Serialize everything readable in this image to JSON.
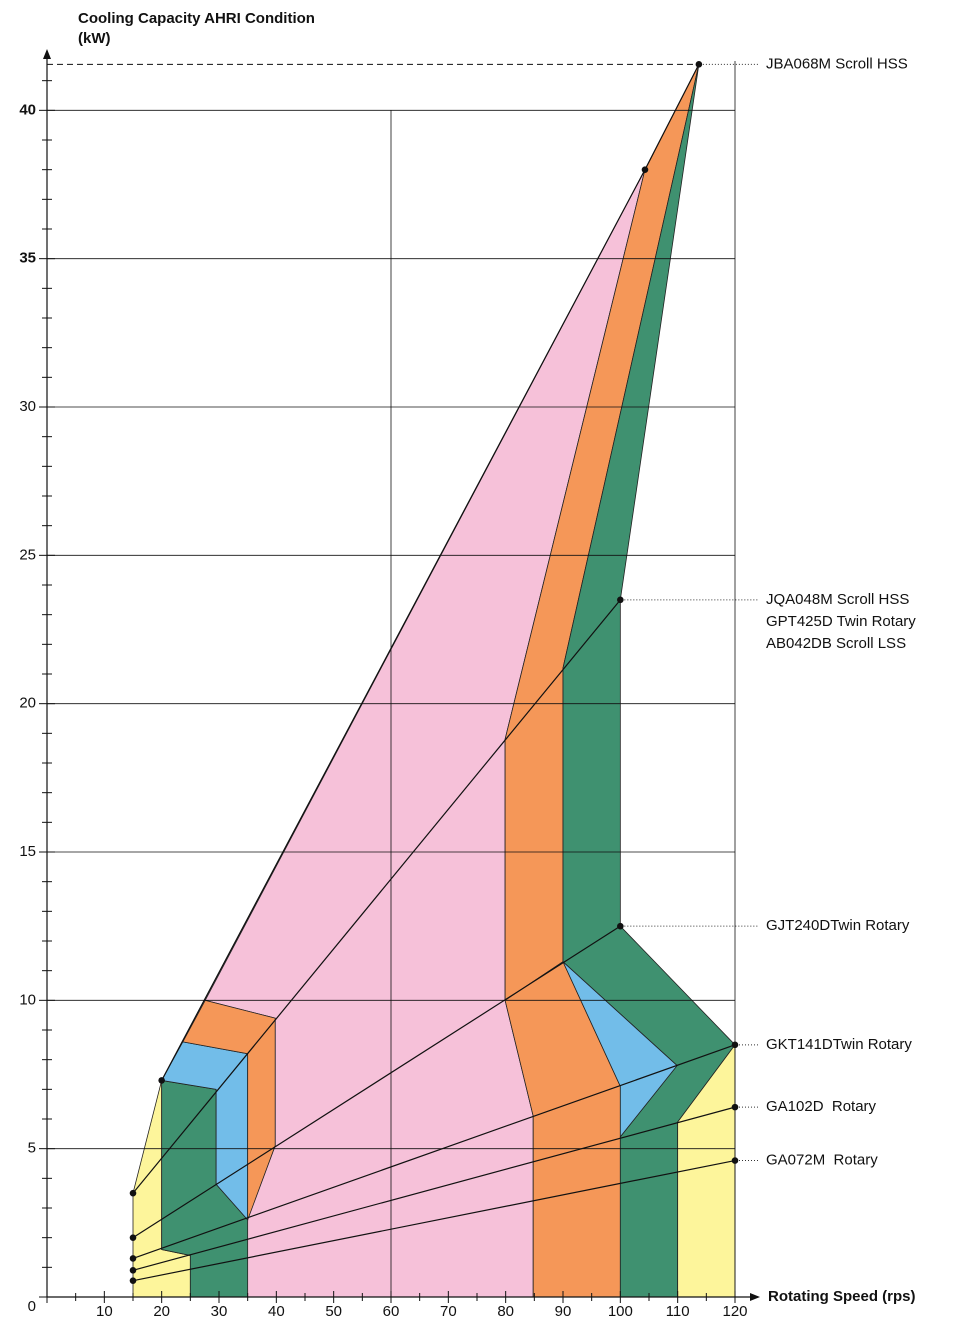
{
  "chart_data": {
    "type": "line",
    "title": "Cooling Capacity AHRI Condition",
    "title_unit": "(kW)",
    "x_label": "Rotating Speed (rps)",
    "xlim": [
      0,
      120
    ],
    "ylim": [
      0,
      42
    ],
    "xticks": [
      0,
      10,
      20,
      30,
      40,
      50,
      60,
      70,
      80,
      90,
      100,
      110,
      120
    ],
    "xminorticks": [
      5,
      15,
      25,
      35,
      45,
      55,
      65,
      75,
      85,
      95,
      105,
      115
    ],
    "yticks": [
      0,
      5,
      10,
      15,
      20,
      25,
      30,
      35,
      40
    ],
    "yminorticks": [
      1,
      2,
      3,
      4,
      6,
      7,
      8,
      9,
      11,
      12,
      13,
      14,
      16,
      17,
      18,
      19,
      21,
      22,
      23,
      24,
      26,
      27,
      28,
      29,
      31,
      32,
      33,
      34,
      36,
      37,
      38,
      39,
      41
    ],
    "xgrid": [
      60,
      120
    ],
    "grid": true,
    "regions": [
      {
        "color": "#f6c1d9",
        "points": [
          [
            27.6,
            10
          ],
          [
            104.3,
            38
          ],
          [
            79.9,
            18.8
          ],
          [
            79.9,
            10
          ],
          [
            84.8,
            6.1
          ],
          [
            84.8,
            0
          ],
          [
            34.9,
            0
          ],
          [
            34.9,
            2.6
          ],
          [
            39.8,
            5.1
          ],
          [
            39.8,
            9.4
          ]
        ]
      },
      {
        "color": "#f59758",
        "points": [
          [
            104.3,
            38
          ],
          [
            113.7,
            41.55
          ],
          [
            90,
            21.2
          ],
          [
            90,
            11.3
          ],
          [
            79.9,
            10
          ],
          [
            79.9,
            18.8
          ]
        ]
      },
      {
        "color": "#f59758",
        "points": [
          [
            79.9,
            10
          ],
          [
            90,
            11.3
          ],
          [
            100,
            7.1
          ],
          [
            100,
            0
          ],
          [
            84.8,
            0
          ],
          [
            84.8,
            6.1
          ]
        ]
      },
      {
        "color": "#3f9170",
        "points": [
          [
            113.7,
            41.55
          ],
          [
            100,
            23.5
          ],
          [
            100,
            12.5
          ],
          [
            120,
            8.5
          ],
          [
            110,
            5.9
          ],
          [
            110,
            0
          ],
          [
            100,
            0
          ],
          [
            100,
            5.4
          ],
          [
            109.9,
            7.8
          ],
          [
            90,
            11.3
          ],
          [
            90,
            21.2
          ]
        ]
      },
      {
        "color": "#72bde9",
        "points": [
          [
            90,
            11.3
          ],
          [
            109.9,
            7.8
          ],
          [
            100,
            5.4
          ],
          [
            100,
            7.1
          ]
        ]
      },
      {
        "color": "#fdf59b",
        "points": [
          [
            120,
            8.5
          ],
          [
            120,
            0
          ],
          [
            110,
            0
          ],
          [
            110,
            5.9
          ]
        ]
      },
      {
        "color": "#fdf59b",
        "points": [
          [
            20,
            7.3
          ],
          [
            15,
            3.5
          ],
          [
            15,
            0
          ],
          [
            25,
            0
          ],
          [
            25,
            1.4
          ],
          [
            20,
            1.6
          ]
        ]
      },
      {
        "color": "#3f9170",
        "points": [
          [
            20,
            7.3
          ],
          [
            20,
            1.6
          ],
          [
            25,
            1.4
          ],
          [
            25,
            0
          ],
          [
            35,
            0
          ],
          [
            35,
            2.6
          ],
          [
            29.5,
            3.8
          ],
          [
            29.5,
            7.0
          ]
        ]
      },
      {
        "color": "#72bde9",
        "points": [
          [
            20,
            7.3
          ],
          [
            23.7,
            8.6
          ],
          [
            35,
            8.2
          ],
          [
            35,
            2.6
          ],
          [
            29.5,
            3.8
          ],
          [
            29.5,
            7.0
          ]
        ]
      },
      {
        "color": "#f59758",
        "points": [
          [
            23.7,
            8.6
          ],
          [
            27.6,
            10
          ],
          [
            39.8,
            9.4
          ],
          [
            39.8,
            5.1
          ],
          [
            35,
            2.6
          ],
          [
            35,
            8.2
          ]
        ]
      }
    ],
    "series": [
      {
        "labels": [
          "JBA068M Scroll HSS"
        ],
        "x": [
          20,
          104.3,
          113.7
        ],
        "values": [
          7.3,
          38,
          41.55
        ]
      },
      {
        "labels": [
          "JQA048M Scroll HSS",
          "GPT425D Twin Rotary",
          "AB042DB Scroll LSS"
        ],
        "x": [
          15,
          100
        ],
        "values": [
          3.5,
          23.5
        ]
      },
      {
        "labels": [
          "GJT240DTwin Rotary"
        ],
        "x": [
          15,
          100
        ],
        "values": [
          2.0,
          12.5
        ]
      },
      {
        "labels": [
          "GKT141DTwin Rotary"
        ],
        "x": [
          15,
          120
        ],
        "values": [
          1.3,
          8.5
        ]
      },
      {
        "labels": [
          "GA102D  Rotary"
        ],
        "x": [
          15,
          120
        ],
        "values": [
          0.9,
          6.4
        ]
      },
      {
        "labels": [
          "GA072M  Rotary"
        ],
        "x": [
          15,
          120
        ],
        "values": [
          0.55,
          4.6
        ]
      }
    ]
  }
}
